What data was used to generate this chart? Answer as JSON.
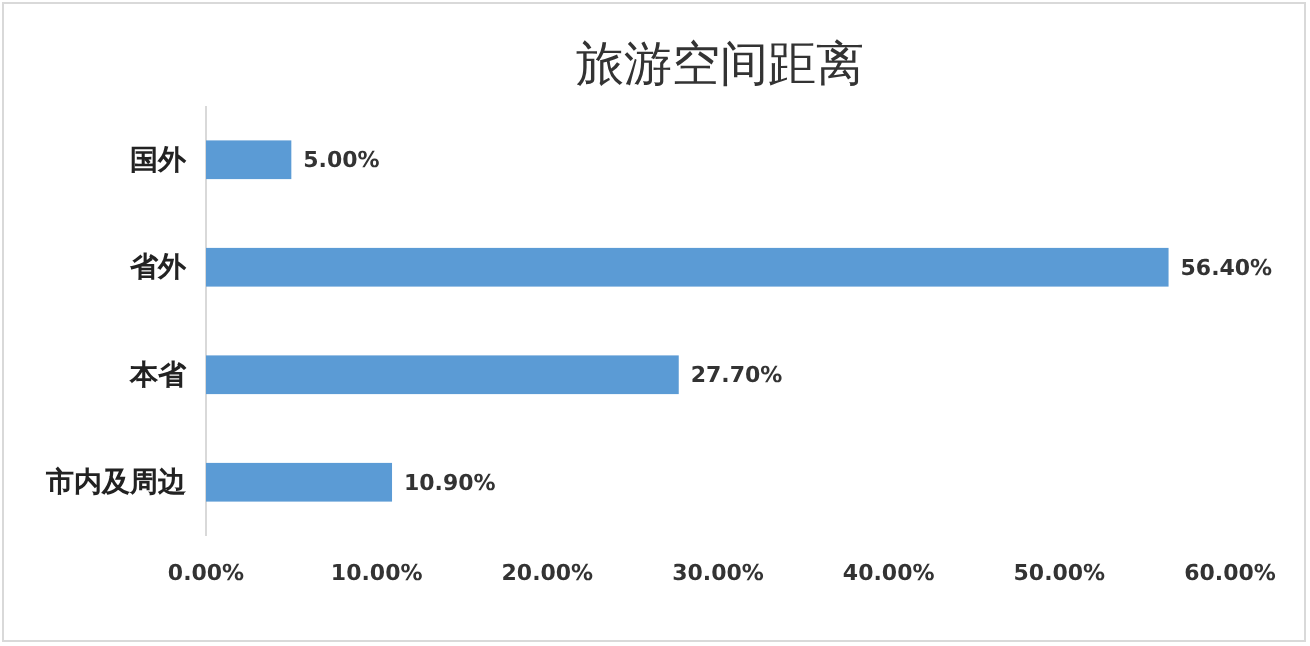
{
  "chart_data": {
    "type": "bar",
    "orientation": "horizontal",
    "title": "旅游空间距离",
    "categories": [
      "国外",
      "省外",
      "本省",
      "市内及周边"
    ],
    "values": [
      5.0,
      56.4,
      27.7,
      10.9
    ],
    "value_labels": [
      "5.00%",
      "56.40%",
      "27.70%",
      "10.90%"
    ],
    "color": "#5b9bd5",
    "xlim": [
      0,
      60
    ],
    "xticks": [
      {
        "value": 0,
        "label": "0.00%"
      },
      {
        "value": 10,
        "label": "10.00%"
      },
      {
        "value": 20,
        "label": "20.00%"
      },
      {
        "value": 30,
        "label": "30.00%"
      },
      {
        "value": 40,
        "label": "40.00%"
      },
      {
        "value": 50,
        "label": "50.00%"
      },
      {
        "value": 60,
        "label": "60.00%"
      }
    ],
    "grid": false
  }
}
